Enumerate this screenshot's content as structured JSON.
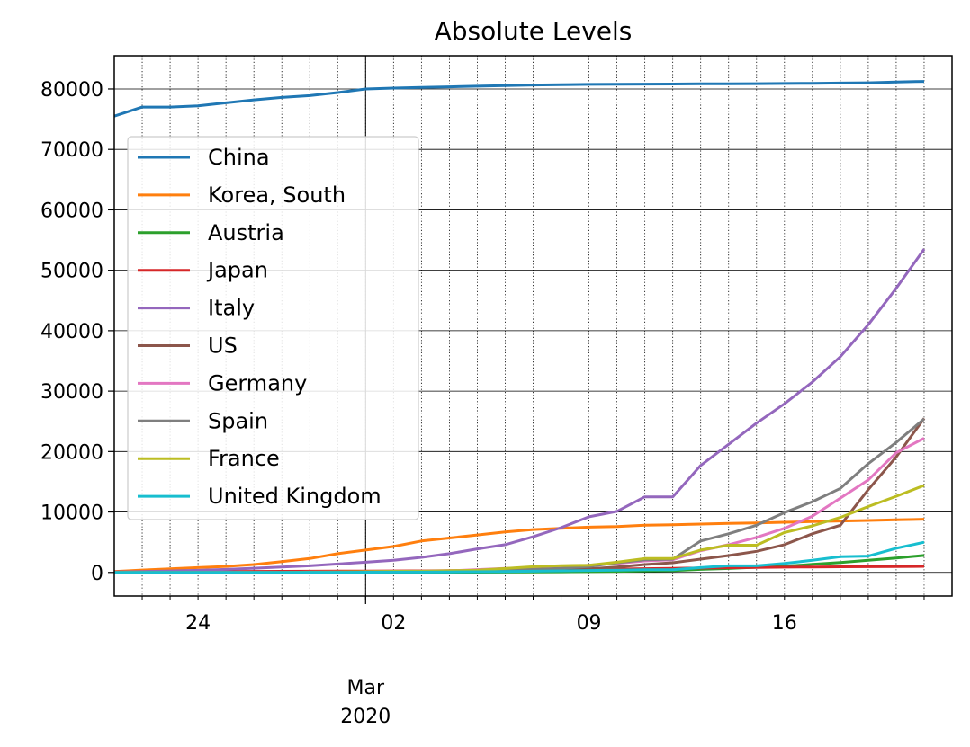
{
  "chart_data": {
    "type": "line",
    "title": "Absolute Levels",
    "xlabel": "",
    "ylabel": "",
    "x": [
      "2020-02-21",
      "2020-02-22",
      "2020-02-23",
      "2020-02-24",
      "2020-02-25",
      "2020-02-26",
      "2020-02-27",
      "2020-02-28",
      "2020-02-29",
      "2020-03-01",
      "2020-03-02",
      "2020-03-03",
      "2020-03-04",
      "2020-03-05",
      "2020-03-06",
      "2020-03-07",
      "2020-03-08",
      "2020-03-09",
      "2020-03-10",
      "2020-03-11",
      "2020-03-12",
      "2020-03-13",
      "2020-03-14",
      "2020-03-15",
      "2020-03-16",
      "2020-03-17",
      "2020-03-18",
      "2020-03-19",
      "2020-03-20",
      "2020-03-21"
    ],
    "xlim": [
      "2020-02-21",
      "2020-03-22"
    ],
    "ylim": [
      -3900,
      85500
    ],
    "yticks": [
      0,
      10000,
      20000,
      30000,
      40000,
      50000,
      60000,
      70000,
      80000
    ],
    "xticks_major": [
      {
        "date": "2020-03-01",
        "label": "Mar\n2020"
      }
    ],
    "xticks_minor": [
      {
        "date": "2020-02-24",
        "label": "24"
      },
      {
        "date": "2020-03-02",
        "label": "02"
      },
      {
        "date": "2020-03-09",
        "label": "09"
      },
      {
        "date": "2020-03-16",
        "label": "16"
      }
    ],
    "grid": {
      "major": "solid",
      "minor": "dotted"
    },
    "legend": "upper-left",
    "series": [
      {
        "name": "China",
        "color": "#1f77b4",
        "values": [
          75500,
          77000,
          77000,
          77200,
          77700,
          78200,
          78600,
          78900,
          79400,
          80000,
          80150,
          80250,
          80350,
          80450,
          80550,
          80650,
          80700,
          80750,
          80780,
          80800,
          80820,
          80840,
          80860,
          80880,
          80900,
          80940,
          80980,
          81030,
          81150,
          81250
        ]
      },
      {
        "name": "Korea, South",
        "color": "#ff7f0e",
        "values": [
          150,
          400,
          600,
          800,
          1000,
          1300,
          1800,
          2300,
          3100,
          3700,
          4300,
          5200,
          5700,
          6200,
          6700,
          7100,
          7300,
          7500,
          7600,
          7800,
          7900,
          8000,
          8100,
          8200,
          8300,
          8400,
          8500,
          8600,
          8700,
          8800
        ]
      },
      {
        "name": "Austria",
        "color": "#2ca02c",
        "values": [
          0,
          0,
          0,
          0,
          2,
          2,
          3,
          3,
          9,
          10,
          14,
          20,
          29,
          40,
          55,
          79,
          104,
          131,
          182,
          246,
          302,
          504,
          655,
          860,
          1018,
          1332,
          1646,
          2013,
          2388,
          2814
        ]
      },
      {
        "name": "Japan",
        "color": "#d62728",
        "values": [
          100,
          110,
          130,
          150,
          160,
          170,
          190,
          210,
          230,
          240,
          250,
          270,
          290,
          320,
          350,
          400,
          450,
          500,
          560,
          620,
          680,
          720,
          770,
          820,
          870,
          910,
          930,
          950,
          980,
          1010
        ]
      },
      {
        "name": "Italy",
        "color": "#9467bd",
        "values": [
          50,
          150,
          250,
          350,
          500,
          700,
          900,
          1100,
          1400,
          1700,
          2000,
          2500,
          3100,
          3900,
          4600,
          5900,
          7400,
          9200,
          10100,
          12500,
          12500,
          17700,
          21200,
          24700,
          27900,
          31500,
          35700,
          41000,
          47000,
          53500
        ]
      },
      {
        "name": "US",
        "color": "#8c564b",
        "values": [
          0,
          0,
          0,
          0,
          0,
          0,
          0,
          0,
          50,
          70,
          100,
          120,
          160,
          220,
          330,
          400,
          500,
          600,
          900,
          1300,
          1600,
          2200,
          2800,
          3500,
          4600,
          6400,
          7800,
          13700,
          19100,
          25500
        ]
      },
      {
        "name": "Germany",
        "color": "#e377c2",
        "values": [
          0,
          0,
          0,
          0,
          0,
          0,
          0,
          50,
          70,
          130,
          160,
          200,
          260,
          480,
          670,
          800,
          1000,
          1200,
          1500,
          1900,
          2100,
          3600,
          4600,
          5800,
          7300,
          9300,
          12300,
          15300,
          19800,
          22200
        ]
      },
      {
        "name": "Spain",
        "color": "#7f7f7f",
        "values": [
          0,
          0,
          0,
          0,
          0,
          0,
          0,
          20,
          40,
          80,
          120,
          160,
          220,
          260,
          400,
          500,
          670,
          1000,
          1600,
          2100,
          2200,
          5200,
          6400,
          7800,
          9900,
          11700,
          13900,
          18000,
          21500,
          25400
        ]
      },
      {
        "name": "France",
        "color": "#bcbd22",
        "values": [
          0,
          0,
          0,
          0,
          0,
          0,
          0,
          50,
          90,
          130,
          190,
          210,
          280,
          380,
          650,
          950,
          1130,
          1200,
          1700,
          2300,
          2300,
          3700,
          4500,
          4500,
          6600,
          7700,
          9100,
          10900,
          12600,
          14400
        ]
      },
      {
        "name": "United Kingdom",
        "color": "#17becf",
        "values": [
          0,
          0,
          0,
          0,
          0,
          0,
          0,
          20,
          30,
          40,
          50,
          60,
          90,
          120,
          160,
          210,
          270,
          320,
          380,
          460,
          460,
          800,
          1100,
          1100,
          1500,
          2000,
          2600,
          2700,
          4000,
          5000
        ]
      }
    ]
  }
}
